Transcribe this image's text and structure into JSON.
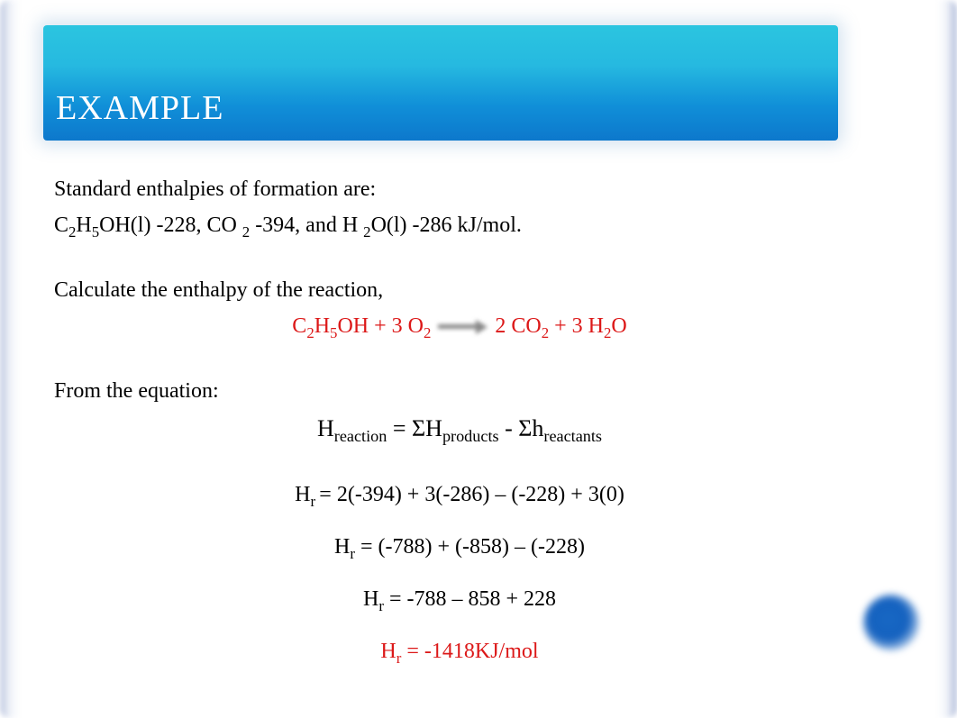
{
  "title": "EXAMPLE",
  "colors": {
    "banner_gradient_top": "#2bc5e0",
    "banner_gradient_bottom": "#0d78cc",
    "border_tint": "#7890c0",
    "text": "#000000",
    "highlight": "#dc1818",
    "corner_dot": "#1461bf",
    "background": "#ffffff"
  },
  "typography": {
    "title_fontsize": 38,
    "body_fontsize": 24,
    "font_family": "Times New Roman"
  },
  "content": {
    "line1": "Standard enthalpies of formation are:",
    "line2_parts": {
      "p1": "C",
      "sub1": "2",
      "p2": "H",
      "sub2": "5",
      "p3": "OH(l) -228, CO",
      "sub3": "2",
      "p4": " -394, and H",
      "sub4": "2",
      "p5": "O(l) -286 kJ/mol."
    },
    "line3": "Calculate the enthalpy of the reaction,",
    "equation_parts": {
      "p1": "C",
      "sub1": "2",
      "p2": "H",
      "sub2": "5",
      "p3": "OH + 3 O",
      "sub3": "2",
      "p4": " ",
      "p5": " 2 CO",
      "sub5": "2",
      "p6": " + 3 H",
      "sub6": "2",
      "p7": "O"
    },
    "line5": "From the equation:",
    "formula_parts": {
      "p1": "H",
      "sub1": "reaction",
      "p2": "  = ",
      "sigma1": "Σ",
      "p3": "H",
      "sub3": "products",
      "p4": "  - ",
      "sigma2": "Σ",
      "p5": "h",
      "sub5": "reactants"
    },
    "step1_parts": {
      "p1": "H",
      "sub1": "r ",
      "p2": "= 2(-394) + 3(-286) – (-228) + 3(0)"
    },
    "step2_parts": {
      "p1": "H",
      "sub1": "r",
      "p2": " = (-788) + (-858) – (-228)"
    },
    "step3_parts": {
      "p1": "H",
      "sub1": "r",
      "p2": " = -788 – 858 + 228"
    },
    "result_parts": {
      "p1": "H",
      "sub1": "r",
      "p2": " = -1418KJ/mol"
    }
  }
}
